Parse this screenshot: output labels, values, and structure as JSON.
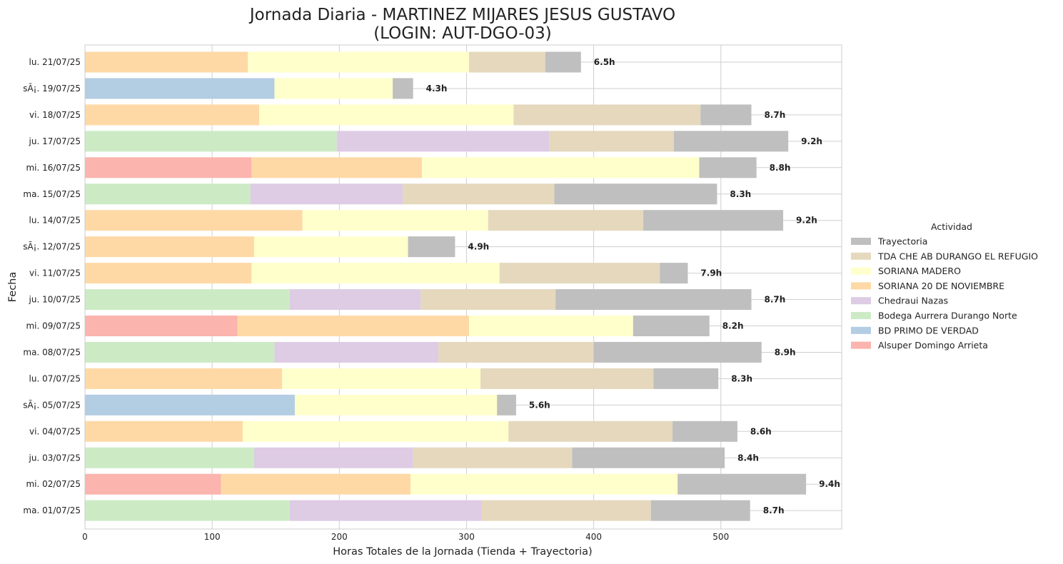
{
  "chart_data": {
    "type": "bar",
    "orientation": "horizontal",
    "stacked": true,
    "title_line1": "Jornada Diaria - MARTINEZ MIJARES JESUS GUSTAVO",
    "title_line2": "(LOGIN: AUT-DGO-03)",
    "xlabel": "Horas Totales de la Jornada (Tienda + Trayectoria)",
    "ylabel": "Fecha",
    "xlim": [
      0,
      595
    ],
    "xticks": [
      0,
      100,
      200,
      300,
      400,
      500
    ],
    "grid": true,
    "legend": {
      "title": "Actividad",
      "placement": "right"
    },
    "categories": [
      "lu. 21/07/25",
      "sÃ¡. 19/07/25",
      "vi. 18/07/25",
      "ju. 17/07/25",
      "mi. 16/07/25",
      "ma. 15/07/25",
      "lu. 14/07/25",
      "sÃ¡. 12/07/25",
      "vi. 11/07/25",
      "ju. 10/07/25",
      "mi. 09/07/25",
      "ma. 08/07/25",
      "lu. 07/07/25",
      "sÃ¡. 05/07/25",
      "vi. 04/07/25",
      "ju. 03/07/25",
      "mi. 02/07/25",
      "ma. 01/07/25"
    ],
    "totals": [
      "6.5h",
      "4.3h",
      "8.7h",
      "9.2h",
      "8.8h",
      "8.3h",
      "9.2h",
      "4.9h",
      "7.9h",
      "8.7h",
      "8.2h",
      "8.9h",
      "8.3h",
      "5.6h",
      "8.6h",
      "8.4h",
      "9.4h",
      "8.7h"
    ],
    "stack_order": [
      "Alsuper Domingo Arrieta",
      "BD PRIMO DE VERDAD",
      "Bodega Aurrera Durango Norte",
      "Chedraui Nazas",
      "SORIANA 20 DE NOVIEMBRE",
      "SORIANA MADERO",
      "TDA CHE AB DURANGO EL REFUGIO",
      "Trayectoria"
    ],
    "legend_order": [
      "Trayectoria",
      "TDA CHE AB DURANGO EL REFUGIO",
      "SORIANA MADERO",
      "SORIANA 20 DE NOVIEMBRE",
      "Chedraui Nazas",
      "Bodega Aurrera Durango Norte",
      "BD PRIMO DE VERDAD",
      "Alsuper Domingo Arrieta"
    ],
    "series": [
      {
        "name": "Alsuper Domingo Arrieta",
        "color": "#fbb4ae",
        "values": [
          0,
          0,
          0,
          0,
          131,
          0,
          0,
          0,
          0,
          0,
          120,
          0,
          0,
          0,
          0,
          0,
          107,
          0
        ]
      },
      {
        "name": "BD PRIMO DE VERDAD",
        "color": "#b3cde3",
        "values": [
          0,
          149,
          0,
          0,
          0,
          0,
          0,
          0,
          0,
          0,
          0,
          0,
          0,
          165,
          0,
          0,
          0,
          0
        ]
      },
      {
        "name": "Bodega Aurrera Durango Norte",
        "color": "#ccebc5",
        "values": [
          0,
          0,
          0,
          198,
          0,
          130,
          0,
          0,
          0,
          161,
          0,
          149,
          0,
          0,
          0,
          133,
          0,
          161
        ]
      },
      {
        "name": "Chedraui Nazas",
        "color": "#decbe4",
        "values": [
          0,
          0,
          0,
          167,
          0,
          120,
          0,
          0,
          0,
          103,
          0,
          129,
          0,
          0,
          0,
          125,
          0,
          151
        ]
      },
      {
        "name": "SORIANA 20 DE NOVIEMBRE",
        "color": "#fed9a6",
        "values": [
          128,
          0,
          137,
          0,
          134,
          0,
          171,
          133,
          131,
          0,
          182,
          0,
          155,
          0,
          124,
          0,
          149,
          0
        ]
      },
      {
        "name": "SORIANA MADERO",
        "color": "#ffffcc",
        "values": [
          174,
          93,
          200,
          0,
          218,
          0,
          146,
          121,
          195,
          0,
          129,
          0,
          156,
          159,
          209,
          0,
          210,
          0
        ]
      },
      {
        "name": "TDA CHE AB DURANGO EL REFUGIO",
        "color": "#e5d8bd",
        "values": [
          60,
          0,
          147,
          98,
          0,
          119,
          122,
          0,
          126,
          106,
          0,
          122,
          136,
          0,
          129,
          125,
          0,
          133
        ]
      },
      {
        "name": "Trayectoria",
        "color": "#bfbfbf",
        "values": [
          28,
          16,
          40,
          90,
          45,
          128,
          110,
          37,
          22,
          154,
          60,
          132,
          51,
          15,
          51,
          120,
          101,
          78
        ]
      }
    ]
  }
}
